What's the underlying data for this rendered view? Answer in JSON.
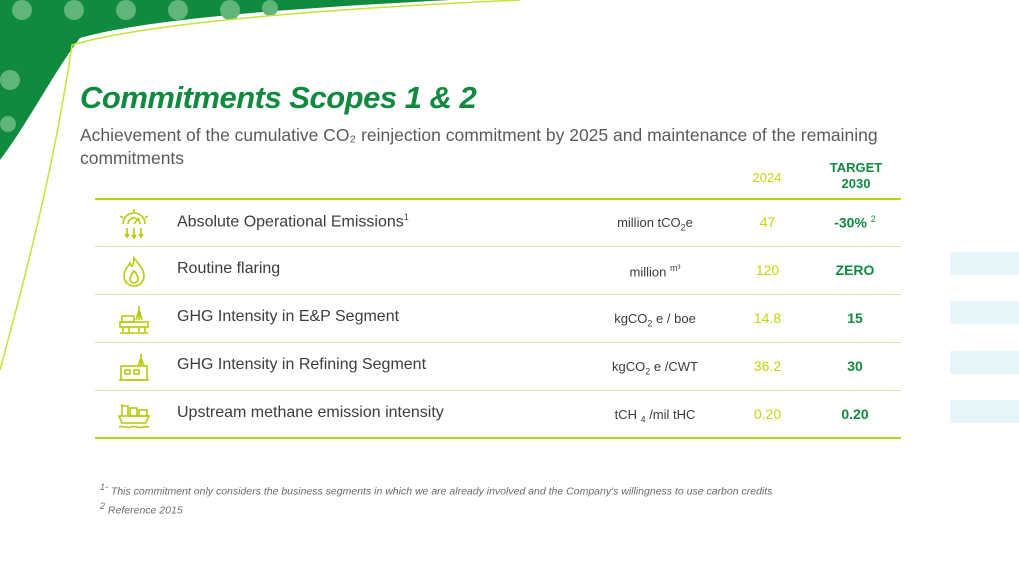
{
  "title": "Commitments Scopes 1 & 2",
  "subtitle": "Achievement of the cumulative CO₂ reinjection commitment by 2025 and maintenance of the remaining commitments",
  "columns": {
    "year": "2024",
    "target_line1": "TARGET",
    "target_line2": "2030"
  },
  "rows": [
    {
      "icon": "emissions-gauge-icon",
      "label": "Absolute Operational Emissions",
      "label_sup": "1",
      "unit_a": "million tCO",
      "unit_sub": "2",
      "unit_b": "e",
      "value_2024": "47",
      "target": "-30%",
      "target_sup": "2"
    },
    {
      "icon": "flame-icon",
      "label": "Routine flaring",
      "label_sup": "",
      "unit_a": "million",
      "unit_sup": "m³",
      "value_2024": "120",
      "target": "ZERO"
    },
    {
      "icon": "oil-platform-icon",
      "label": "GHG Intensity in E&P Segment",
      "unit_a": "kgCO",
      "unit_sub": "2",
      "unit_b": " e / boe",
      "value_2024": "14.8",
      "target": "15"
    },
    {
      "icon": "refinery-icon",
      "label": "GHG Intensity in Refining Segment",
      "unit_a": "kgCO",
      "unit_sub": "2",
      "unit_b": " e /CWT",
      "value_2024": "36.2",
      "target": "30"
    },
    {
      "icon": "ship-platform-icon",
      "label": "Upstream methane emission intensity",
      "unit_a": "tCH ",
      "unit_sub": "4",
      "unit_b": " /mil tHC",
      "value_2024": "0.20",
      "target": "0.20"
    }
  ],
  "footnotes": {
    "note1_mark": "1-",
    "note1": " This commitment only considers the business segments in which we are already involved and the Company's willingness to use carbon credits",
    "note2_mark": "2",
    "note2": " Reference 2015"
  },
  "colors": {
    "brand_green": "#0f8a3f",
    "lime": "#c5d30a",
    "stripe": "#e6f6f8"
  }
}
